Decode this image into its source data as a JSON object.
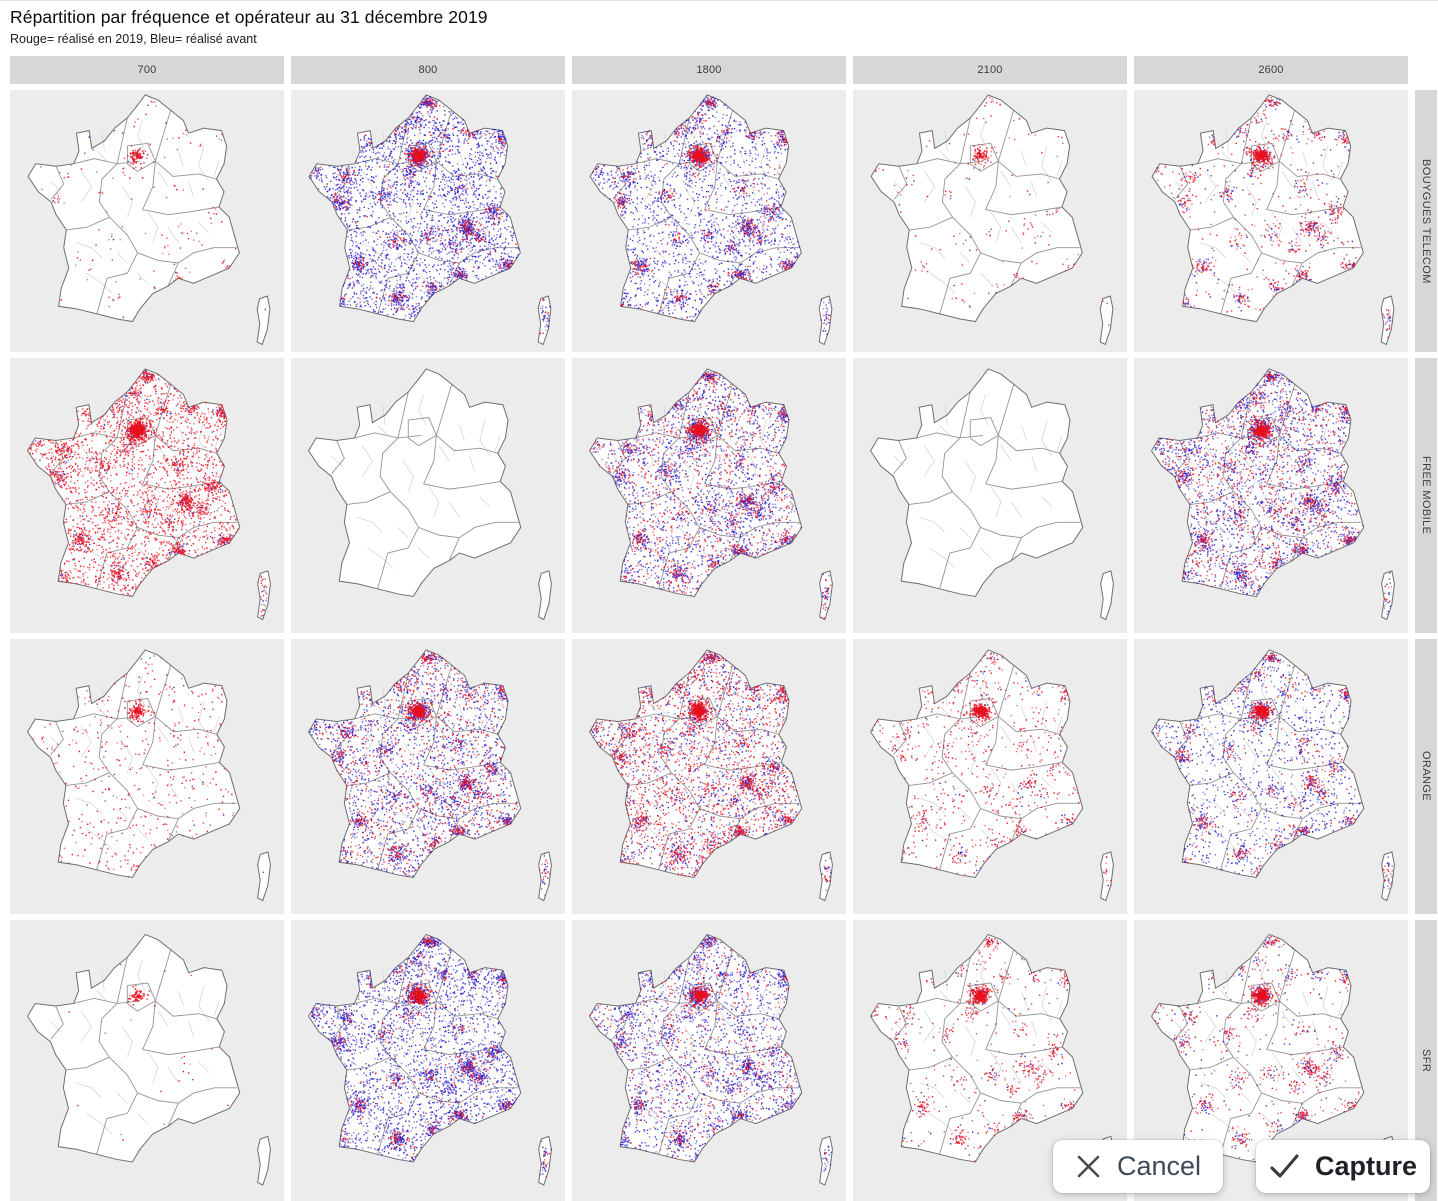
{
  "page": {
    "title": "Répartition par fréquence et opérateur au 31 décembre 2019",
    "subtitle": "Rouge= réalisé en 2019, Bleu= réalisé avant"
  },
  "capture_toolbar": {
    "cancel_label": "Cancel",
    "capture_label": "Capture"
  },
  "colors": {
    "red_2019": "#e8101e",
    "blue_before": "#2a20cc",
    "panel_bg": "#ececec",
    "strip_bg": "#d7d7d7",
    "map_fill": "#ffffff",
    "map_outline": "#6e6e6e"
  },
  "chart_data": {
    "type": "scatter",
    "subtype": "faceted antenna point-maps of France (rows = operator, columns = frequency band MHz)",
    "title": "Répartition par fréquence et opérateur au 31 décembre 2019",
    "subtitle": "Rouge= réalisé en 2019, Bleu= réalisé avant",
    "legend": [
      {
        "color": "#e8101e",
        "label": "Rouge= réalisé en 2019"
      },
      {
        "color": "#2a20cc",
        "label": "Bleu= réalisé avant"
      }
    ],
    "facet_columns": [
      "700",
      "800",
      "1800",
      "2100",
      "2600"
    ],
    "facet_rows": [
      "BOUYGUES TELECOM",
      "FREE MOBILE",
      "ORANGE",
      "SFR"
    ],
    "cells": [
      {
        "operator": "BOUYGUES TELECOM",
        "frequency_mhz": "700",
        "red_density": "sparse",
        "red_pattern": "clusters",
        "blue_density": "rare",
        "blue_pattern": "clusters",
        "paris_cluster": true
      },
      {
        "operator": "BOUYGUES TELECOM",
        "frequency_mhz": "800",
        "red_density": "moderate",
        "red_pattern": "clusters",
        "blue_density": "very-dense",
        "blue_pattern": "mixed",
        "paris_cluster": true
      },
      {
        "operator": "BOUYGUES TELECOM",
        "frequency_mhz": "1800",
        "red_density": "moderate",
        "red_pattern": "clusters",
        "blue_density": "dense",
        "blue_pattern": "mixed",
        "paris_cluster": true
      },
      {
        "operator": "BOUYGUES TELECOM",
        "frequency_mhz": "2100",
        "red_density": "sparse",
        "red_pattern": "clusters",
        "blue_density": "rare",
        "blue_pattern": "clusters",
        "paris_cluster": true
      },
      {
        "operator": "BOUYGUES TELECOM",
        "frequency_mhz": "2600",
        "red_density": "moderate",
        "red_pattern": "clusters",
        "blue_density": "low",
        "blue_pattern": "clusters",
        "paris_cluster": true
      },
      {
        "operator": "FREE MOBILE",
        "frequency_mhz": "700",
        "red_density": "very-dense",
        "red_pattern": "mixed",
        "blue_density": "low",
        "blue_pattern": "clusters",
        "paris_cluster": true
      },
      {
        "operator": "FREE MOBILE",
        "frequency_mhz": "800",
        "red_density": "none",
        "red_pattern": "none",
        "blue_density": "none",
        "blue_pattern": "none",
        "paris_cluster": false
      },
      {
        "operator": "FREE MOBILE",
        "frequency_mhz": "1800",
        "red_density": "high",
        "red_pattern": "mixed",
        "blue_density": "dense",
        "blue_pattern": "mixed",
        "paris_cluster": true
      },
      {
        "operator": "FREE MOBILE",
        "frequency_mhz": "2100",
        "red_density": "none",
        "red_pattern": "none",
        "blue_density": "none",
        "blue_pattern": "none",
        "paris_cluster": false
      },
      {
        "operator": "FREE MOBILE",
        "frequency_mhz": "2600",
        "red_density": "high",
        "red_pattern": "mixed",
        "blue_density": "dense",
        "blue_pattern": "mixed",
        "paris_cluster": true
      },
      {
        "operator": "ORANGE",
        "frequency_mhz": "700",
        "red_density": "low",
        "red_pattern": "uniform",
        "blue_density": "rare",
        "blue_pattern": "clusters",
        "paris_cluster": true
      },
      {
        "operator": "ORANGE",
        "frequency_mhz": "800",
        "red_density": "high",
        "red_pattern": "mixed",
        "blue_density": "dense",
        "blue_pattern": "mixed",
        "paris_cluster": true
      },
      {
        "operator": "ORANGE",
        "frequency_mhz": "1800",
        "red_density": "dense",
        "red_pattern": "mixed",
        "blue_density": "high",
        "blue_pattern": "mixed",
        "paris_cluster": true
      },
      {
        "operator": "ORANGE",
        "frequency_mhz": "2100",
        "red_density": "moderate",
        "red_pattern": "mixed",
        "blue_density": "sparse",
        "blue_pattern": "clusters",
        "paris_cluster": true
      },
      {
        "operator": "ORANGE",
        "frequency_mhz": "2600",
        "red_density": "moderate",
        "red_pattern": "clusters",
        "blue_density": "high",
        "blue_pattern": "mixed",
        "paris_cluster": true
      },
      {
        "operator": "SFR",
        "frequency_mhz": "700",
        "red_density": "rare",
        "red_pattern": "clusters",
        "blue_density": "none",
        "blue_pattern": "none",
        "paris_cluster": true
      },
      {
        "operator": "SFR",
        "frequency_mhz": "800",
        "red_density": "moderate",
        "red_pattern": "clusters",
        "blue_density": "very-dense",
        "blue_pattern": "mixed",
        "paris_cluster": true
      },
      {
        "operator": "SFR",
        "frequency_mhz": "1800",
        "red_density": "moderate",
        "red_pattern": "mixed",
        "blue_density": "dense",
        "blue_pattern": "mixed",
        "paris_cluster": true
      },
      {
        "operator": "SFR",
        "frequency_mhz": "2100",
        "red_density": "moderate",
        "red_pattern": "clusters",
        "blue_density": "sparse",
        "blue_pattern": "clusters",
        "paris_cluster": true
      },
      {
        "operator": "SFR",
        "frequency_mhz": "2600",
        "red_density": "moderate",
        "red_pattern": "clusters",
        "blue_density": "low",
        "blue_pattern": "clusters",
        "paris_cluster": true
      }
    ]
  }
}
